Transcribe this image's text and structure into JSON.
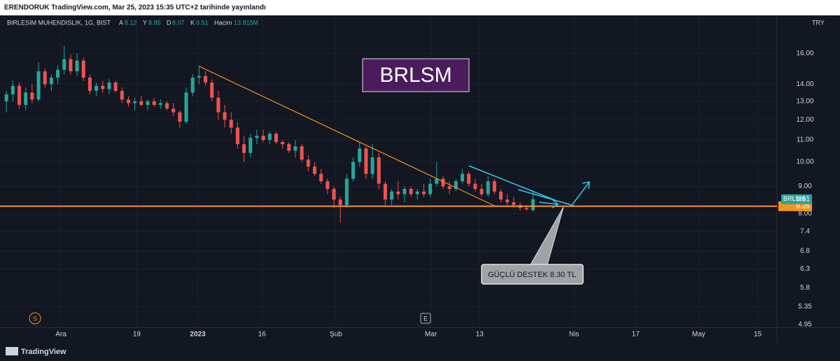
{
  "chart_data": {
    "type": "candlestick",
    "header": "ERENDORUK TradingView.com, Mar 25, 2023 15:35 UTC+2 tarihinde yayınlandı",
    "symbol_title": "BIRLESIM MUHENDISLIK, 1G, BIST",
    "ohlc_labels": [
      "A",
      "Y",
      "D",
      "K"
    ],
    "volume_label": "Hacim",
    "volume": "13.815M",
    "currency": "TRY",
    "box_text": "BRLSM",
    "annotation": "GÜÇLÜ DESTEK 8.30 TL",
    "event_markers": [
      "S",
      "E"
    ],
    "footer": "TradingView",
    "log_scale": true,
    "grid": true,
    "up_color": "#26a69a",
    "down_color": "#ef5350",
    "last_price": {
      "name": "BRLSM",
      "value": 8.51,
      "color": "#26a69a"
    },
    "support": {
      "value": 8.26,
      "color": "#f7931a"
    },
    "x": [
      0,
      1,
      2,
      3,
      4,
      5,
      6,
      7,
      8,
      9,
      10,
      11,
      12,
      13,
      14,
      15,
      16,
      17,
      18,
      19,
      20,
      21,
      22,
      23,
      24,
      25,
      26,
      27,
      28,
      29,
      30,
      31,
      32,
      33,
      34,
      35,
      36,
      37,
      38,
      39,
      40,
      41,
      42,
      43,
      44,
      45,
      46,
      47,
      48,
      49,
      50,
      51,
      52,
      53,
      54,
      55,
      56,
      57,
      58,
      59,
      60,
      61,
      62,
      63,
      64,
      65,
      66,
      67,
      68,
      69,
      70,
      71,
      72,
      73,
      74,
      75,
      76,
      77,
      78,
      79,
      80,
      81,
      82
    ],
    "candles": [
      [
        13.0,
        13.6,
        12.4,
        13.4
      ],
      [
        13.4,
        14.2,
        13.0,
        13.9
      ],
      [
        13.9,
        14.1,
        12.6,
        12.8
      ],
      [
        12.8,
        13.8,
        12.5,
        13.5
      ],
      [
        13.5,
        14.0,
        12.9,
        13.1
      ],
      [
        13.1,
        15.4,
        13.0,
        14.8
      ],
      [
        14.8,
        15.0,
        13.8,
        14.0
      ],
      [
        14.0,
        14.6,
        13.6,
        14.4
      ],
      [
        14.4,
        15.2,
        14.0,
        14.9
      ],
      [
        14.9,
        16.5,
        14.6,
        15.6
      ],
      [
        15.6,
        15.9,
        14.6,
        14.8
      ],
      [
        14.8,
        16.0,
        14.5,
        15.5
      ],
      [
        15.5,
        15.7,
        14.2,
        14.4
      ],
      [
        14.4,
        14.6,
        13.4,
        13.6
      ],
      [
        13.6,
        14.1,
        13.3,
        13.9
      ],
      [
        13.9,
        14.2,
        13.5,
        13.7
      ],
      [
        13.7,
        14.3,
        13.4,
        14.1
      ],
      [
        14.1,
        14.2,
        13.5,
        13.6
      ],
      [
        13.6,
        13.8,
        12.9,
        13.1
      ],
      [
        13.1,
        13.3,
        12.7,
        12.9
      ],
      [
        12.9,
        13.2,
        12.5,
        13.0
      ],
      [
        13.0,
        13.3,
        12.7,
        12.8
      ],
      [
        12.8,
        13.1,
        12.5,
        13.0
      ],
      [
        13.0,
        13.2,
        12.7,
        12.8
      ],
      [
        12.8,
        13.1,
        12.6,
        12.9
      ],
      [
        12.9,
        13.0,
        12.5,
        12.6
      ],
      [
        12.6,
        12.9,
        12.2,
        12.4
      ],
      [
        12.4,
        12.5,
        11.6,
        11.9
      ],
      [
        11.9,
        13.8,
        11.8,
        13.5
      ],
      [
        13.5,
        14.6,
        13.3,
        14.4
      ],
      [
        14.4,
        15.2,
        14.0,
        14.5
      ],
      [
        14.5,
        14.8,
        13.9,
        14.1
      ],
      [
        14.1,
        14.3,
        13.0,
        13.2
      ],
      [
        13.2,
        13.6,
        12.0,
        12.4
      ],
      [
        12.4,
        12.8,
        11.6,
        12.0
      ],
      [
        12.0,
        12.4,
        11.3,
        11.6
      ],
      [
        11.6,
        11.9,
        10.6,
        10.8
      ],
      [
        10.8,
        11.2,
        10.0,
        10.4
      ],
      [
        10.4,
        11.3,
        10.2,
        11.1
      ],
      [
        11.1,
        11.5,
        10.8,
        11.2
      ],
      [
        11.2,
        11.5,
        10.9,
        11.0
      ],
      [
        11.0,
        11.4,
        10.8,
        11.3
      ],
      [
        11.3,
        11.4,
        10.8,
        10.9
      ],
      [
        10.9,
        11.0,
        10.6,
        10.8
      ],
      [
        10.8,
        10.9,
        10.4,
        10.5
      ],
      [
        10.5,
        11.0,
        10.2,
        10.7
      ],
      [
        10.7,
        10.8,
        10.0,
        10.1
      ],
      [
        10.1,
        10.3,
        9.6,
        9.8
      ],
      [
        9.8,
        10.0,
        9.4,
        9.5
      ],
      [
        9.5,
        9.7,
        9.1,
        9.2
      ],
      [
        9.2,
        9.3,
        8.7,
        8.9
      ],
      [
        8.9,
        9.0,
        8.2,
        8.5
      ],
      [
        8.5,
        8.6,
        7.7,
        8.3
      ],
      [
        8.3,
        9.5,
        8.2,
        9.3
      ],
      [
        9.3,
        10.2,
        9.2,
        10.0
      ],
      [
        10.0,
        10.9,
        9.8,
        10.6
      ],
      [
        10.6,
        10.7,
        9.3,
        9.5
      ],
      [
        9.5,
        10.8,
        9.3,
        10.2
      ],
      [
        10.2,
        10.4,
        8.9,
        9.1
      ],
      [
        9.1,
        9.2,
        8.3,
        8.5
      ],
      [
        8.5,
        8.9,
        8.3,
        8.8
      ],
      [
        8.8,
        9.2,
        8.5,
        8.7
      ],
      [
        8.7,
        9.0,
        8.4,
        8.9
      ],
      [
        8.9,
        9.0,
        8.6,
        8.7
      ],
      [
        8.7,
        8.9,
        8.5,
        8.8
      ],
      [
        8.8,
        9.1,
        8.6,
        8.7
      ],
      [
        8.7,
        9.3,
        8.6,
        9.1
      ],
      [
        9.1,
        10.0,
        9.0,
        9.3
      ],
      [
        9.3,
        9.4,
        8.9,
        9.0
      ],
      [
        9.0,
        9.2,
        8.7,
        8.9
      ],
      [
        8.9,
        9.3,
        8.8,
        9.2
      ],
      [
        9.2,
        9.7,
        9.1,
        9.5
      ],
      [
        9.5,
        9.6,
        9.0,
        9.1
      ],
      [
        9.1,
        9.3,
        8.8,
        8.9
      ],
      [
        8.9,
        9.1,
        8.6,
        8.7
      ],
      [
        8.7,
        9.4,
        8.6,
        9.2
      ],
      [
        9.2,
        9.3,
        8.7,
        8.8
      ],
      [
        8.8,
        8.9,
        8.4,
        8.5
      ],
      [
        8.5,
        8.7,
        8.3,
        8.4
      ],
      [
        8.4,
        8.6,
        8.2,
        8.3
      ],
      [
        8.3,
        8.4,
        8.1,
        8.2
      ],
      [
        8.2,
        8.3,
        8.1,
        8.15
      ],
      [
        8.12,
        8.85,
        8.07,
        8.51
      ]
    ],
    "xlim": [
      -1,
      120
    ],
    "xticks": [
      {
        "value": 8.5,
        "label": "Ara"
      },
      {
        "value": 20.3,
        "label": "19"
      },
      {
        "value": 29.8,
        "label": "2023"
      },
      {
        "value": 39.8,
        "label": "16"
      },
      {
        "value": 51.3,
        "label": "Şub"
      },
      {
        "value": 66.1,
        "label": "Mar"
      },
      {
        "value": 73.7,
        "label": "13"
      },
      {
        "value": 88.4,
        "label": "Nis"
      },
      {
        "value": 98.0,
        "label": "17"
      },
      {
        "value": 107.8,
        "label": "May"
      },
      {
        "value": 117.0,
        "label": "15"
      }
    ],
    "ylim": [
      4.89,
      17.85
    ],
    "yticks": [
      {
        "value": 16,
        "label": "16.00"
      },
      {
        "value": 14,
        "label": "14.00"
      },
      {
        "value": 13,
        "label": "13.00"
      },
      {
        "value": 12,
        "label": "12.00"
      },
      {
        "value": 11,
        "label": "11.00"
      },
      {
        "value": 10,
        "label": "10.00"
      },
      {
        "value": 9,
        "label": "9.00"
      },
      {
        "value": 8,
        "label": "8.00"
      },
      7.4,
      6.8,
      6.3,
      5.8,
      5.35,
      4.95
    ]
  }
}
